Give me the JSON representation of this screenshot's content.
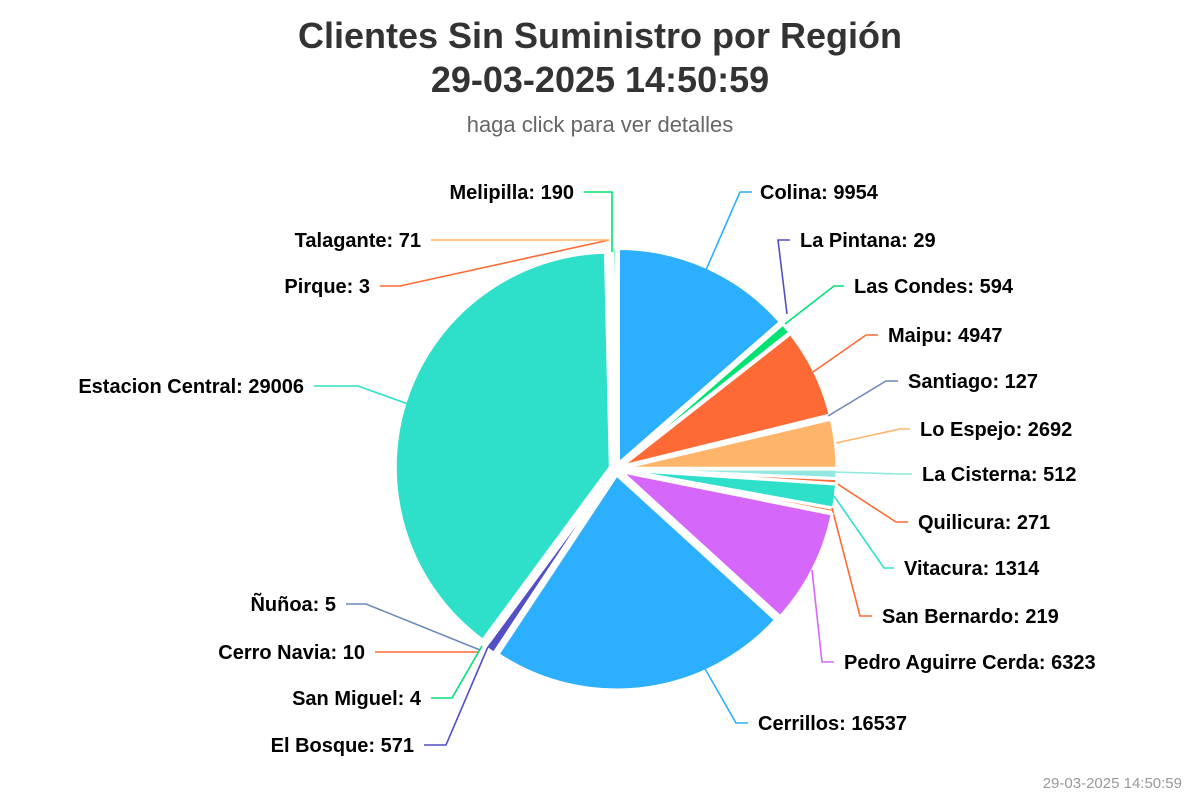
{
  "chart_data": {
    "type": "pie",
    "title_line1": "Clientes Sin Suministro por Región",
    "title_line2": "29-03-2025 14:50:59",
    "subtitle": "haga click para ver detalles",
    "slices": [
      {
        "name": "Colina",
        "value": 9954,
        "color": "#2caffe"
      },
      {
        "name": "La Pintana",
        "value": 29,
        "color": "#544fc5"
      },
      {
        "name": "Las Condes",
        "value": 594,
        "color": "#00e272"
      },
      {
        "name": "Maipu",
        "value": 4947,
        "color": "#fe6a35"
      },
      {
        "name": "Santiago",
        "value": 127,
        "color": "#6b8abc"
      },
      {
        "name": "Lo Espejo",
        "value": 2692,
        "color": "#feb56a"
      },
      {
        "name": "La Cisterna",
        "value": 512,
        "color": "#91e8e1"
      },
      {
        "name": "Quilicura",
        "value": 271,
        "color": "#fe6a35"
      },
      {
        "name": "Vitacura",
        "value": 1314,
        "color": "#2ee0ca"
      },
      {
        "name": "San Bernardo",
        "value": 219,
        "color": "#fe6a35"
      },
      {
        "name": "Pedro Aguirre Cerda",
        "value": 6323,
        "color": "#d568fb"
      },
      {
        "name": "Cerrillos",
        "value": 16537,
        "color": "#2caffe"
      },
      {
        "name": "El Bosque",
        "value": 571,
        "color": "#544fc5"
      },
      {
        "name": "San Miguel",
        "value": 4,
        "color": "#00e272"
      },
      {
        "name": "Cerro Navia",
        "value": 10,
        "color": "#fe6a35"
      },
      {
        "name": "Ñuñoa",
        "value": 5,
        "color": "#6b8abc"
      },
      {
        "name": "Estacion Central",
        "value": 29006,
        "color": "#2ee0ca"
      },
      {
        "name": "Pirque",
        "value": 3,
        "color": "#fe6a35"
      },
      {
        "name": "Talagante",
        "value": 71,
        "color": "#feb56a"
      },
      {
        "name": "Melipilla",
        "value": 190,
        "color": "#00e272"
      }
    ],
    "legend": "none",
    "data_labels": "name: value"
  },
  "footer": {
    "credit": "29-03-2025 14:50:59"
  }
}
